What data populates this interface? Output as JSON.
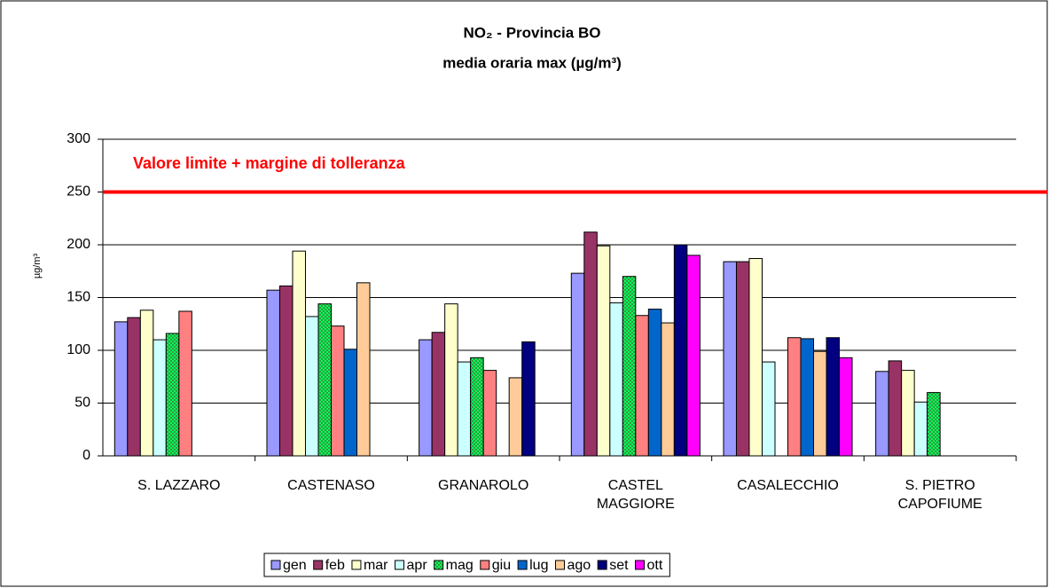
{
  "chart_data": {
    "type": "bar",
    "title": "NO₂ - Provincia BO",
    "subtitle": "media oraria max (µg/m³)",
    "y_label": "µg/m³",
    "categories": [
      "S. LAZZARO",
      "CASTENASO",
      "GRANAROLO",
      "CASTEL\nMAGGIORE",
      "CASALECCHIO",
      "S. PIETRO\nCAPOFIUME"
    ],
    "series": [
      {
        "name": "gen",
        "color": "#9999ff",
        "values": [
          127,
          157,
          110,
          173,
          184,
          80
        ]
      },
      {
        "name": "feb",
        "color": "#993366",
        "values": [
          131,
          161,
          117,
          212,
          184,
          90
        ]
      },
      {
        "name": "mar",
        "color": "#ffffcc",
        "values": [
          138,
          194,
          144,
          199,
          187,
          81
        ]
      },
      {
        "name": "apr",
        "color": "#ccffff",
        "values": [
          110,
          132,
          89,
          145,
          89,
          51
        ]
      },
      {
        "name": "mag",
        "color": "#339933",
        "values": [
          116,
          144,
          93,
          170,
          null,
          60
        ]
      },
      {
        "name": "giu",
        "color": "#ff8080",
        "values": [
          137,
          123,
          81,
          133,
          112,
          null
        ]
      },
      {
        "name": "lug",
        "color": "#0066cc",
        "values": [
          null,
          101,
          null,
          139,
          111,
          null
        ]
      },
      {
        "name": "ago",
        "color": "#ffcc99",
        "values": [
          null,
          164,
          74,
          126,
          99,
          null
        ]
      },
      {
        "name": "set",
        "color": "#000080",
        "values": [
          null,
          null,
          108,
          200,
          112,
          null
        ]
      },
      {
        "name": "ott",
        "color": "#ff00ff",
        "values": [
          null,
          null,
          null,
          190,
          93,
          null
        ]
      }
    ],
    "reference_line": {
      "value": 250,
      "label": "Valore limite + margine di tolleranza",
      "color": "#ff0000"
    },
    "ylim": [
      0,
      300
    ],
    "yticks": [
      0,
      50,
      100,
      150,
      200,
      250,
      300
    ],
    "grid": true,
    "legend": "bottom"
  }
}
